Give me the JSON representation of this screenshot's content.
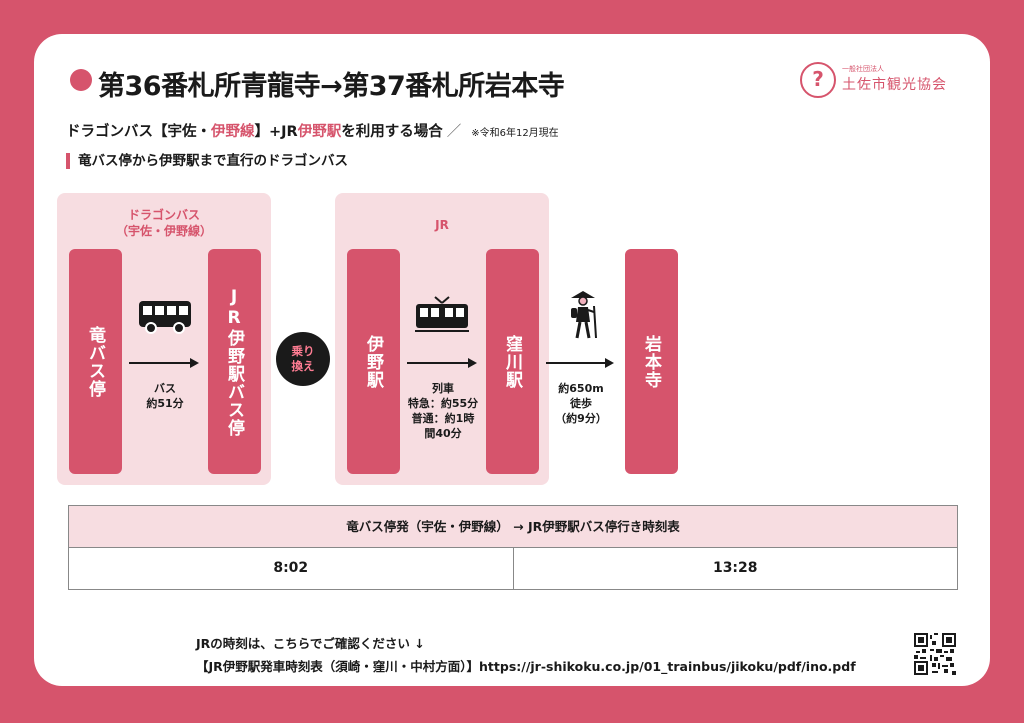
{
  "header": {
    "title": "第36番札所青龍寺→第37番札所岩本寺",
    "logo_small": "一般社団法人",
    "logo_name": "土佐市観光協会"
  },
  "subtitle": {
    "part1": "ドラゴンバス【宇佐・",
    "part2": "伊野線",
    "part3": "】+JR",
    "part4": "伊野駅",
    "part5": "を利用する場合",
    "slash": "／",
    "note": "※令和6年12月現在"
  },
  "section_label": "竜バス停から伊野駅まで直行のドラゴンバス",
  "route": {
    "bus_panel_label1": "ドラゴンバス",
    "bus_panel_label2": "（宇佐・伊野線）",
    "stop_start": "竜バス停",
    "stop_bus_end": "JR伊野駅バス停",
    "bus_caption1": "バス",
    "bus_caption2": "約51分",
    "transfer_line1": "乗り",
    "transfer_line2": "換え",
    "jr_panel_label": "JR",
    "stop_ino": "伊野駅",
    "stop_kubokawa": "窪川駅",
    "train_caption1": "列車",
    "train_caption2": "特急：約55分",
    "train_caption3": "普通：約1時",
    "train_caption4": "間40分",
    "walk_caption1": "約650m",
    "walk_caption2": "徒歩",
    "walk_caption3": "（約9分）",
    "stop_end": "岩本寺"
  },
  "timetable": {
    "header": "竜バス停発（宇佐・伊野線） → JR伊野駅バス停行き時刻表",
    "times": [
      "8:02",
      "13:28"
    ]
  },
  "footer": {
    "line1": "JRの時刻は、こちらでご確認ください ↓",
    "line2": "【JR伊野駅発車時刻表（須崎・窪川・中村方面）】https://jr-shikoku.co.jp/01_trainbus/jikoku/pdf/ino.pdf"
  },
  "icons": [
    "bus-icon",
    "train-icon",
    "pilgrim-icon",
    "qr-code-icon"
  ],
  "colors": {
    "accent": "#d6546c",
    "panel": "#f7dde1"
  }
}
